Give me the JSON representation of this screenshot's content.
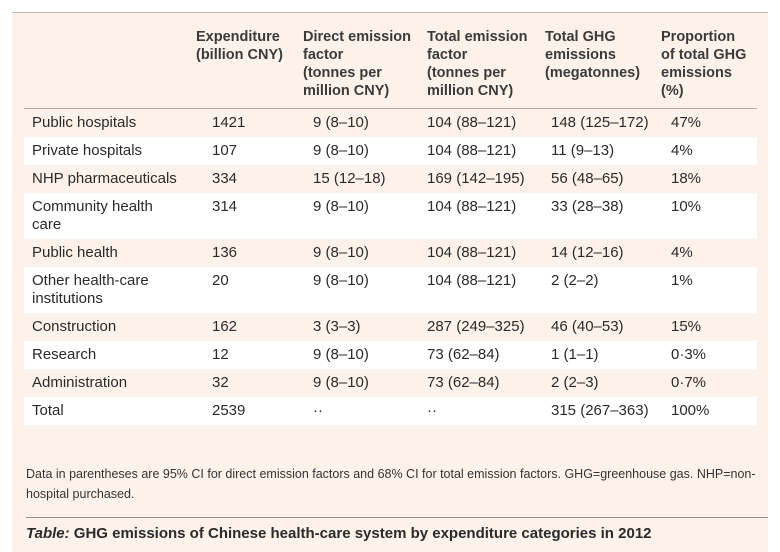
{
  "columns": [
    "",
    "Expenditure (billion CNY)",
    "Direct emission factor (tonnes per million CNY)",
    "Total emission factor (tonnes per million CNY)",
    "Total GHG emissions (megatonnes)",
    "Proportion of total GHG emissions (%)"
  ],
  "header_lines": {
    "expenditure": [
      "Expenditure",
      "(billion CNY)"
    ],
    "direct": [
      "Direct emission",
      "factor",
      "(tonnes per",
      "million CNY)"
    ],
    "total_factor": [
      "Total emission",
      "factor",
      "(tonnes per",
      "million CNY)"
    ],
    "ghg": [
      "Total GHG",
      "emissions",
      "(megatonnes)"
    ],
    "proportion": [
      "Proportion",
      "of total GHG",
      "emissions",
      "(%)"
    ]
  },
  "rows": [
    {
      "name": [
        "Public hospitals"
      ],
      "expenditure": "1421",
      "direct": "9 (8–10)",
      "total_factor": "104 (88–121)",
      "ghg": "148 (125–172)",
      "proportion": "47%"
    },
    {
      "name": [
        "Private hospitals"
      ],
      "expenditure": "107",
      "direct": "9 (8–10)",
      "total_factor": "104 (88–121)",
      "ghg": "11 (9–13)",
      "proportion": "4%"
    },
    {
      "name": [
        "NHP pharmaceuticals"
      ],
      "expenditure": "334",
      "direct": "15 (12–18)",
      "total_factor": "169 (142–195)",
      "ghg": "56 (48–65)",
      "proportion": "18%"
    },
    {
      "name": [
        "Community health",
        "care"
      ],
      "expenditure": "314",
      "direct": "9 (8–10)",
      "total_factor": "104 (88–121)",
      "ghg": "33 (28–38)",
      "proportion": "10%"
    },
    {
      "name": [
        "Public health"
      ],
      "expenditure": "136",
      "direct": "9 (8–10)",
      "total_factor": "104 (88–121)",
      "ghg": "14 (12–16)",
      "proportion": "4%"
    },
    {
      "name": [
        "Other health-care",
        "institutions"
      ],
      "expenditure": "20",
      "direct": "9 (8–10)",
      "total_factor": "104 (88–121)",
      "ghg": "2 (2–2)",
      "proportion": "1%"
    },
    {
      "name": [
        "Construction"
      ],
      "expenditure": "162",
      "direct": "3 (3–3)",
      "total_factor": "287 (249–325)",
      "ghg": "46 (40–53)",
      "proportion": "15%"
    },
    {
      "name": [
        "Research"
      ],
      "expenditure": "12",
      "direct": "9 (8–10)",
      "total_factor": "73 (62–84)",
      "ghg": "1 (1–1)",
      "proportion": "0·3%"
    },
    {
      "name": [
        "Administration"
      ],
      "expenditure": "32",
      "direct": "9 (8–10)",
      "total_factor": "73 (62–84)",
      "ghg": "2 (2–3)",
      "proportion": "0·7%"
    },
    {
      "name": [
        "Total"
      ],
      "expenditure": "2539",
      "direct": "··",
      "total_factor": "··",
      "ghg": "315 (267–363)",
      "proportion": "100%"
    }
  ],
  "footnote": "Data in parentheses are 95% CI for direct emission factors and 68% CI for total emission factors. GHG=greenhouse gas. NHP=non-hospital purchased.",
  "caption": {
    "label": "Table:",
    "text": " GHG emissions of Chinese health-care system by expenditure categories in 2012"
  },
  "colors": {
    "background": "#fdf2ea",
    "row_alt": "#ffffff",
    "rule": "#b9a89e"
  }
}
